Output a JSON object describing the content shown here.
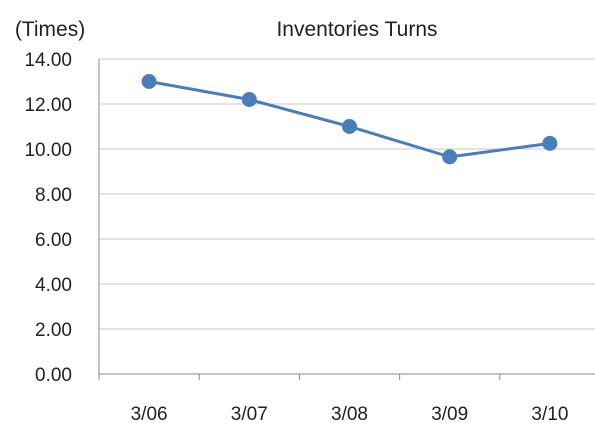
{
  "chart_data": {
    "type": "line",
    "title": "Inventories Turns",
    "ylabel": "(Times)",
    "xlabel": "",
    "categories": [
      "3/06",
      "3/07",
      "3/08",
      "3/09",
      "3/10"
    ],
    "series": [
      {
        "values": [
          13.0,
          12.2,
          11.0,
          9.65,
          10.25
        ]
      }
    ],
    "ylim": [
      0,
      14
    ],
    "yticks": [
      "0.00",
      "2.00",
      "4.00",
      "6.00",
      "8.00",
      "10.00",
      "12.00",
      "14.00"
    ],
    "grid": true,
    "legend": "none",
    "colors": {
      "series": "#4a7ebb",
      "grid": "#c8c8c8",
      "axis": "#888888",
      "text": "#222222"
    }
  }
}
